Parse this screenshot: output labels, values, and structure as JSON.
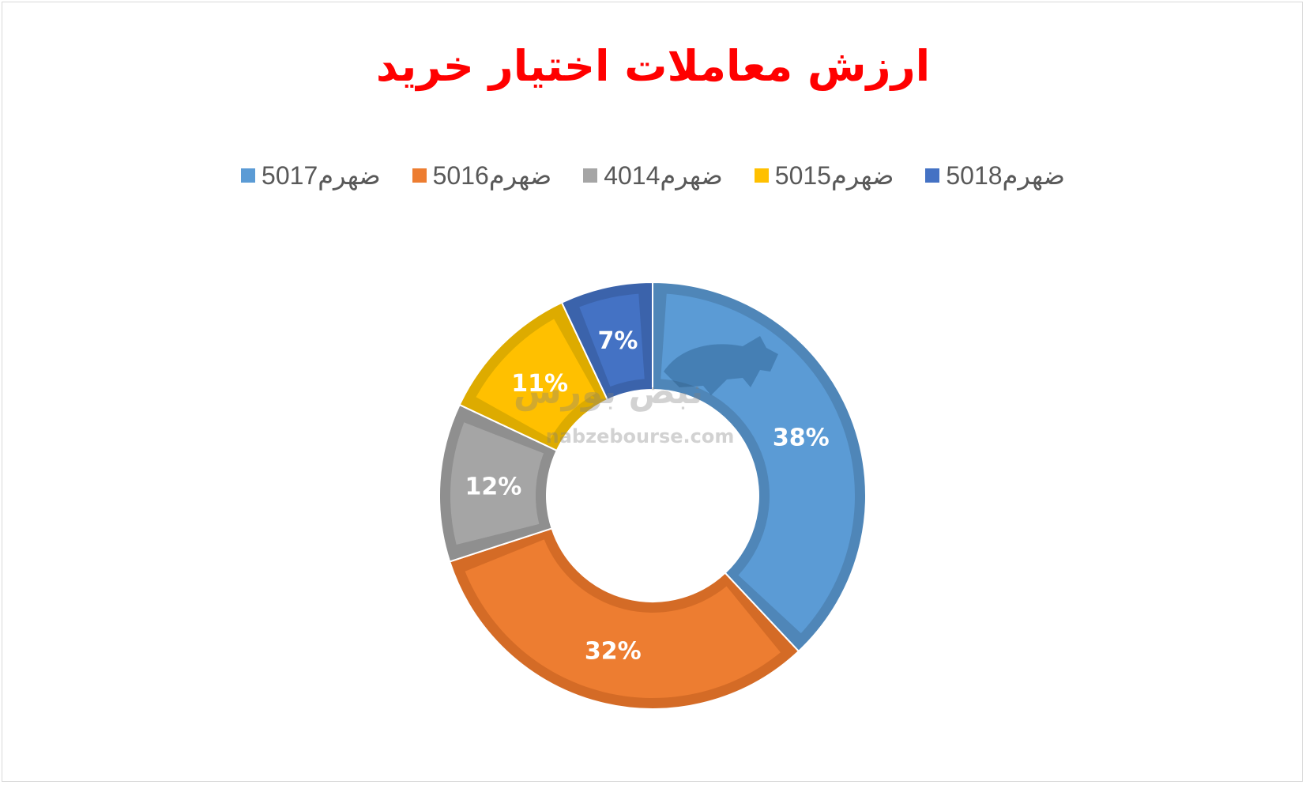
{
  "chart_data": {
    "type": "pie",
    "variant": "doughnut",
    "title": "ارزش معاملات اختیار خرید",
    "legend_position": "top",
    "categories": [
      "ضهرم5017",
      "ضهرم5016",
      "ضهرم4014",
      "ضهرم5015",
      "ضهرم5018"
    ],
    "values": [
      38,
      32,
      12,
      11,
      7
    ],
    "data_labels": [
      "38%",
      "32%",
      "12%",
      "11%",
      "7%"
    ],
    "colors": [
      "#5b9bd5",
      "#ed7d31",
      "#a5a5a5",
      "#ffc000",
      "#4472c4"
    ],
    "edge_colors": [
      "#4f86b8",
      "#d46b26",
      "#8f8f8f",
      "#ddab00",
      "#3b63ab"
    ]
  },
  "watermark": {
    "logo_text": "نبض بورس",
    "url_text": "nabzebourse.com"
  }
}
